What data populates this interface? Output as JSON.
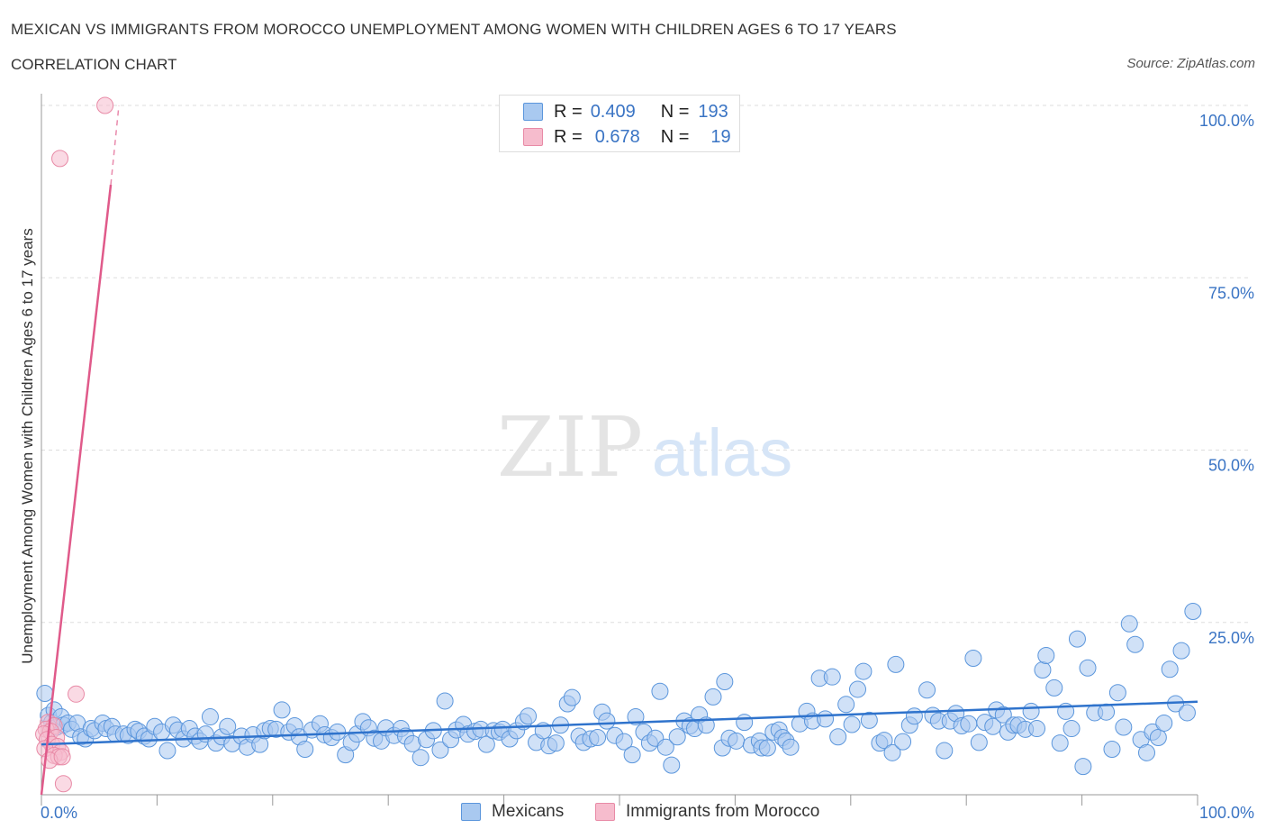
{
  "title": "MEXICAN VS IMMIGRANTS FROM MOROCCO UNEMPLOYMENT AMONG WOMEN WITH CHILDREN AGES 6 TO 17 YEARS",
  "subtitle": "CORRELATION CHART",
  "source": "Source: ZipAtlas.com",
  "watermark": {
    "zip": "ZIP",
    "atlas": "atlas"
  },
  "legend": {
    "r_label": "R =",
    "n_label": "N =",
    "mexicans": {
      "r": "0.409",
      "n": "193"
    },
    "morocco": {
      "r": "0.678",
      "n": "19"
    }
  },
  "colors": {
    "blue_fill": "#a9c9f0",
    "blue_stroke": "#5b96dc",
    "blue_line": "#2f73cc",
    "pink_fill": "#f6bccd",
    "pink_stroke": "#e88aa6",
    "pink_line": "#e05a8a",
    "axis_text": "#3a74c4",
    "grid": "#dddddd"
  },
  "chart_data": {
    "type": "scatter",
    "title": "MEXICAN VS IMMIGRANTS FROM MOROCCO UNEMPLOYMENT AMONG WOMEN WITH CHILDREN AGES 6 TO 17 YEARS",
    "xlabel": "",
    "ylabel": "Unemployment Among Women with Children Ages 6 to 17 years",
    "xlim": [
      0,
      100
    ],
    "ylim": [
      0,
      100
    ],
    "x_tick_labels": [
      "0.0%",
      "100.0%"
    ],
    "y_ticks": [
      25,
      50,
      75,
      100
    ],
    "y_tick_labels": [
      "25.0%",
      "50.0%",
      "75.0%",
      "100.0%"
    ],
    "grid": true,
    "series": [
      {
        "name": "Mexicans",
        "r": 0.409,
        "n": 193,
        "trend": {
          "x": [
            0,
            100
          ],
          "y": [
            7.3,
            13.5
          ]
        },
        "points": [
          [
            0.3,
            14.7
          ],
          [
            0.6,
            11.5
          ],
          [
            0.9,
            10.5
          ],
          [
            1.1,
            12.3
          ],
          [
            1.3,
            9.8
          ],
          [
            1.7,
            11.3
          ],
          [
            1.9,
            10.1
          ],
          [
            2.3,
            10.4
          ],
          [
            2.6,
            9.5
          ],
          [
            3.1,
            10.4
          ],
          [
            3.4,
            8.4
          ],
          [
            3.8,
            8.1
          ],
          [
            4.3,
            9.6
          ],
          [
            4.6,
            9.3
          ],
          [
            5.3,
            10.4
          ],
          [
            5.6,
            9.6
          ],
          [
            6.1,
            9.9
          ],
          [
            6.4,
            8.8
          ],
          [
            7.1,
            8.8
          ],
          [
            7.5,
            8.6
          ],
          [
            8.1,
            9.5
          ],
          [
            8.4,
            9.2
          ],
          [
            8.9,
            8.5
          ],
          [
            9.3,
            8.1
          ],
          [
            9.8,
            9.9
          ],
          [
            10.4,
            9.1
          ],
          [
            10.9,
            6.4
          ],
          [
            11.4,
            10.1
          ],
          [
            11.8,
            9.4
          ],
          [
            12.3,
            8.1
          ],
          [
            12.8,
            9.6
          ],
          [
            13.3,
            8.5
          ],
          [
            13.7,
            7.8
          ],
          [
            14.2,
            8.8
          ],
          [
            14.6,
            11.3
          ],
          [
            15.1,
            7.5
          ],
          [
            15.6,
            8.4
          ],
          [
            16.1,
            9.9
          ],
          [
            16.5,
            7.4
          ],
          [
            17.3,
            8.5
          ],
          [
            17.8,
            6.9
          ],
          [
            18.3,
            8.7
          ],
          [
            18.9,
            7.3
          ],
          [
            19.3,
            9.3
          ],
          [
            19.8,
            9.6
          ],
          [
            20.3,
            9.5
          ],
          [
            20.8,
            12.3
          ],
          [
            21.4,
            9.1
          ],
          [
            21.9,
            10.0
          ],
          [
            22.3,
            8.4
          ],
          [
            22.8,
            6.6
          ],
          [
            23.4,
            9.4
          ],
          [
            24.1,
            10.3
          ],
          [
            24.5,
            8.7
          ],
          [
            25.1,
            8.3
          ],
          [
            25.6,
            9.1
          ],
          [
            26.3,
            5.8
          ],
          [
            26.8,
            7.6
          ],
          [
            27.3,
            8.8
          ],
          [
            27.8,
            10.6
          ],
          [
            28.3,
            9.7
          ],
          [
            28.8,
            8.2
          ],
          [
            29.4,
            7.8
          ],
          [
            29.8,
            9.7
          ],
          [
            30.5,
            8.6
          ],
          [
            31.1,
            9.6
          ],
          [
            31.5,
            8.5
          ],
          [
            32.1,
            7.4
          ],
          [
            32.8,
            5.4
          ],
          [
            33.3,
            8.0
          ],
          [
            33.9,
            9.3
          ],
          [
            34.5,
            6.5
          ],
          [
            34.9,
            13.6
          ],
          [
            35.4,
            8.0
          ],
          [
            35.9,
            9.4
          ],
          [
            36.5,
            10.2
          ],
          [
            36.9,
            8.8
          ],
          [
            37.5,
            9.2
          ],
          [
            38.0,
            9.5
          ],
          [
            38.5,
            7.3
          ],
          [
            39.1,
            9.3
          ],
          [
            39.6,
            9.1
          ],
          [
            39.9,
            9.5
          ],
          [
            40.5,
            8.1
          ],
          [
            41.1,
            9.3
          ],
          [
            41.7,
            10.6
          ],
          [
            42.1,
            11.4
          ],
          [
            42.8,
            7.6
          ],
          [
            43.4,
            9.3
          ],
          [
            43.9,
            7.1
          ],
          [
            44.5,
            7.5
          ],
          [
            44.9,
            10.1
          ],
          [
            45.5,
            13.2
          ],
          [
            45.9,
            14.1
          ],
          [
            46.5,
            8.5
          ],
          [
            46.9,
            7.6
          ],
          [
            47.5,
            8.1
          ],
          [
            48.1,
            8.3
          ],
          [
            48.5,
            12.0
          ],
          [
            48.9,
            10.7
          ],
          [
            49.6,
            8.6
          ],
          [
            50.4,
            7.7
          ],
          [
            51.1,
            5.8
          ],
          [
            51.4,
            11.3
          ],
          [
            52.1,
            9.1
          ],
          [
            52.6,
            7.5
          ],
          [
            53.1,
            8.2
          ],
          [
            53.5,
            15.0
          ],
          [
            54.0,
            6.9
          ],
          [
            54.5,
            4.3
          ],
          [
            55.0,
            8.4
          ],
          [
            55.6,
            10.7
          ],
          [
            56.1,
            10.0
          ],
          [
            56.5,
            9.6
          ],
          [
            56.9,
            11.6
          ],
          [
            57.5,
            10.1
          ],
          [
            58.1,
            14.2
          ],
          [
            58.9,
            6.8
          ],
          [
            59.1,
            16.4
          ],
          [
            59.5,
            8.2
          ],
          [
            60.1,
            7.8
          ],
          [
            60.8,
            10.5
          ],
          [
            61.4,
            7.2
          ],
          [
            62.1,
            7.8
          ],
          [
            62.3,
            6.8
          ],
          [
            62.8,
            6.8
          ],
          [
            63.3,
            9.1
          ],
          [
            63.8,
            9.4
          ],
          [
            64.1,
            8.3
          ],
          [
            64.4,
            7.8
          ],
          [
            64.8,
            6.9
          ],
          [
            65.6,
            10.3
          ],
          [
            66.2,
            12.1
          ],
          [
            66.7,
            10.7
          ],
          [
            67.3,
            16.9
          ],
          [
            67.8,
            11.0
          ],
          [
            68.4,
            17.1
          ],
          [
            68.9,
            8.4
          ],
          [
            69.6,
            13.1
          ],
          [
            70.1,
            10.2
          ],
          [
            70.6,
            15.3
          ],
          [
            71.1,
            17.9
          ],
          [
            71.6,
            10.8
          ],
          [
            72.5,
            7.5
          ],
          [
            72.9,
            7.9
          ],
          [
            73.6,
            6.1
          ],
          [
            73.9,
            18.9
          ],
          [
            74.5,
            7.7
          ],
          [
            75.1,
            10.1
          ],
          [
            75.5,
            11.4
          ],
          [
            76.6,
            15.2
          ],
          [
            77.1,
            11.5
          ],
          [
            77.6,
            10.7
          ],
          [
            78.1,
            6.4
          ],
          [
            78.6,
            10.7
          ],
          [
            79.1,
            11.8
          ],
          [
            79.6,
            10.0
          ],
          [
            80.2,
            10.3
          ],
          [
            80.6,
            19.8
          ],
          [
            81.1,
            7.6
          ],
          [
            81.6,
            10.5
          ],
          [
            82.3,
            9.9
          ],
          [
            82.6,
            12.3
          ],
          [
            83.2,
            11.6
          ],
          [
            83.6,
            9.1
          ],
          [
            84.1,
            10.1
          ],
          [
            84.5,
            10.1
          ],
          [
            85.1,
            9.5
          ],
          [
            85.6,
            12.1
          ],
          [
            86.1,
            9.6
          ],
          [
            86.6,
            18.1
          ],
          [
            86.9,
            20.2
          ],
          [
            87.6,
            15.5
          ],
          [
            88.1,
            7.5
          ],
          [
            88.6,
            12.1
          ],
          [
            89.1,
            9.6
          ],
          [
            89.6,
            22.6
          ],
          [
            90.1,
            4.1
          ],
          [
            90.5,
            18.4
          ],
          [
            91.1,
            11.9
          ],
          [
            92.1,
            12.0
          ],
          [
            92.6,
            6.6
          ],
          [
            93.1,
            14.8
          ],
          [
            93.6,
            9.8
          ],
          [
            94.1,
            24.8
          ],
          [
            94.6,
            21.8
          ],
          [
            95.1,
            8.0
          ],
          [
            95.6,
            6.1
          ],
          [
            96.1,
            9.1
          ],
          [
            96.6,
            8.3
          ],
          [
            97.1,
            10.4
          ],
          [
            97.6,
            18.2
          ],
          [
            98.1,
            13.2
          ],
          [
            98.6,
            20.9
          ],
          [
            99.1,
            11.9
          ],
          [
            99.6,
            26.6
          ]
        ]
      },
      {
        "name": "Immigrants from Morocco",
        "r": 0.678,
        "n": 19,
        "trend": {
          "x": [
            0,
            6.0
          ],
          "y": [
            0,
            88.5
          ],
          "dashed_to": {
            "x": 6.7,
            "y": 100
          }
        },
        "points": [
          [
            5.5,
            100.0
          ],
          [
            1.6,
            92.3
          ],
          [
            3.0,
            14.6
          ],
          [
            0.6,
            10.5
          ],
          [
            1.1,
            10.0
          ],
          [
            0.4,
            9.5
          ],
          [
            0.8,
            9.2
          ],
          [
            0.2,
            8.8
          ],
          [
            1.3,
            8.3
          ],
          [
            0.5,
            8.0
          ],
          [
            0.9,
            7.3
          ],
          [
            1.4,
            7.0
          ],
          [
            0.3,
            6.7
          ],
          [
            1.7,
            6.2
          ],
          [
            1.1,
            5.7
          ],
          [
            1.5,
            5.5
          ],
          [
            0.7,
            5.0
          ],
          [
            1.8,
            5.5
          ],
          [
            1.9,
            1.6
          ]
        ]
      }
    ]
  }
}
